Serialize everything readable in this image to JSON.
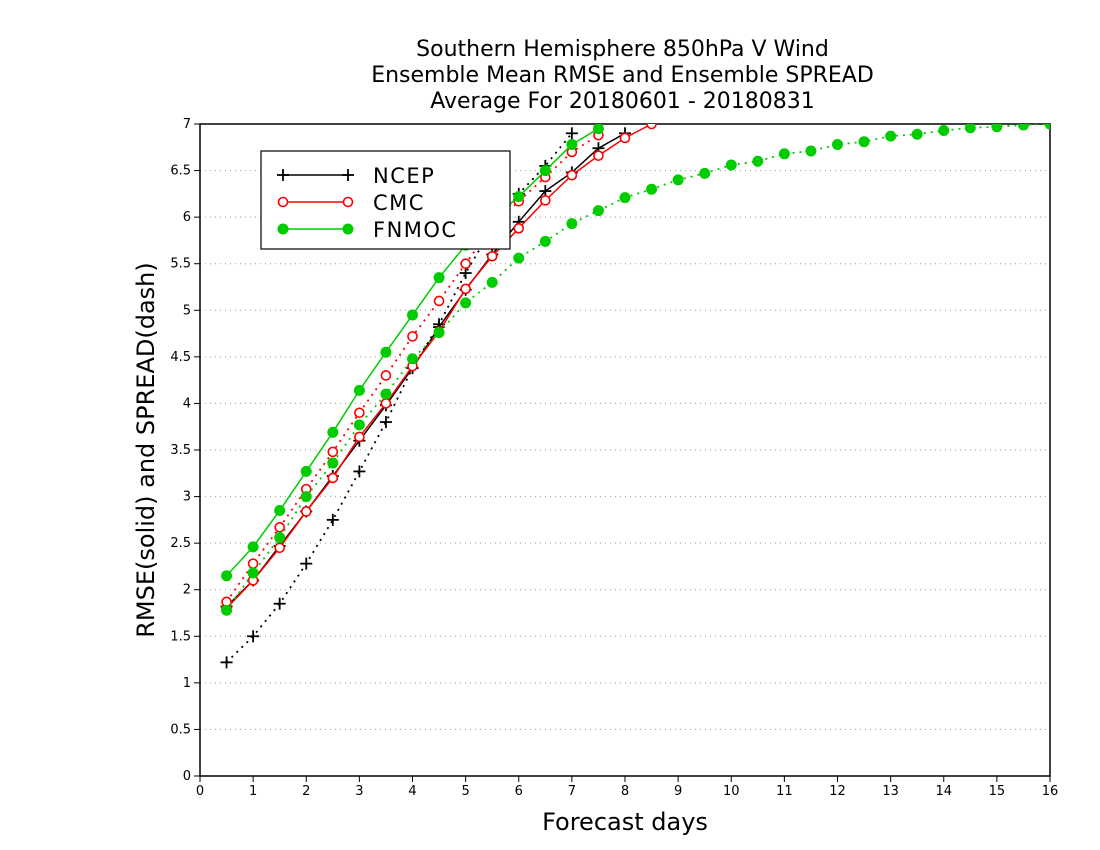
{
  "chart_data": {
    "type": "line",
    "title_lines": [
      "Southern Hemisphere 850hPa V Wind",
      "Ensemble Mean RMSE and Ensemble SPREAD",
      "Average For 20180601 - 20180831"
    ],
    "xlabel": "Forecast days",
    "ylabel": "RMSE(solid) and SPREAD(dash)",
    "xlim": [
      0,
      16
    ],
    "ylim": [
      0,
      7
    ],
    "xticks": [
      0,
      1,
      2,
      3,
      4,
      5,
      6,
      7,
      8,
      9,
      10,
      11,
      12,
      13,
      14,
      15,
      16
    ],
    "yticks": [
      0,
      0.5,
      1,
      1.5,
      2,
      2.5,
      3,
      3.5,
      4,
      4.5,
      5,
      5.5,
      6,
      6.5,
      7
    ],
    "ytick_labels": [
      "0",
      "0.5",
      "1",
      "1.5",
      "2",
      "2.5",
      "3",
      "3.5",
      "4",
      "4.5",
      "5",
      "5.5",
      "6",
      "6.5",
      "7"
    ],
    "grid": "horizontal dotted",
    "legend_position": "top-left",
    "series": [
      {
        "name": "NCEP",
        "color": "#000000",
        "marker": "plus",
        "style": "solid",
        "metric": "RMSE",
        "x": [
          0.5,
          1,
          1.5,
          2,
          2.5,
          3,
          3.5,
          4,
          4.5,
          5,
          5.5,
          6,
          6.5,
          7,
          7.5,
          8
        ],
        "y": [
          1.82,
          2.1,
          2.47,
          2.84,
          3.22,
          3.6,
          3.98,
          4.38,
          4.82,
          5.22,
          5.6,
          5.95,
          6.28,
          6.48,
          6.74,
          6.9
        ]
      },
      {
        "name": "NCEP",
        "color": "#000000",
        "marker": "plus",
        "style": "dotted",
        "metric": "SPREAD",
        "x": [
          0.5,
          1,
          1.5,
          2,
          2.5,
          3,
          3.5,
          4,
          4.5,
          5,
          5.5,
          6,
          6.5,
          7
        ],
        "y": [
          1.22,
          1.5,
          1.85,
          2.28,
          2.75,
          3.27,
          3.8,
          4.38,
          4.85,
          5.4,
          5.88,
          6.25,
          6.55,
          6.9
        ]
      },
      {
        "name": "CMC",
        "color": "#ff0000",
        "marker": "circle",
        "style": "solid",
        "metric": "RMSE",
        "x": [
          0.5,
          1,
          1.5,
          2,
          2.5,
          3,
          3.5,
          4,
          4.5,
          5,
          5.5,
          6,
          6.5,
          7,
          7.5,
          8,
          8.5
        ],
        "y": [
          1.8,
          2.1,
          2.45,
          2.84,
          3.2,
          3.64,
          4.0,
          4.4,
          4.77,
          5.23,
          5.58,
          5.88,
          6.18,
          6.45,
          6.66,
          6.85,
          7.0
        ]
      },
      {
        "name": "CMC",
        "color": "#ff0000",
        "marker": "circle",
        "style": "dotted",
        "metric": "SPREAD",
        "x": [
          0.5,
          1,
          1.5,
          2,
          2.5,
          3,
          3.5,
          4,
          4.5,
          5,
          5.5,
          6,
          6.5,
          7,
          7.5
        ],
        "y": [
          1.87,
          2.28,
          2.67,
          3.08,
          3.48,
          3.9,
          4.3,
          4.72,
          5.1,
          5.5,
          5.9,
          6.17,
          6.43,
          6.7,
          6.88
        ]
      },
      {
        "name": "FNMOC",
        "color": "#00cc00",
        "marker": "dot",
        "style": "solid",
        "metric": "RMSE",
        "x": [
          0.5,
          1,
          1.5,
          2,
          2.5,
          3,
          3.5,
          4,
          4.5,
          5,
          5.5,
          6,
          6.5,
          7,
          7.5
        ],
        "y": [
          2.15,
          2.46,
          2.85,
          3.27,
          3.69,
          4.14,
          4.55,
          4.95,
          5.35,
          5.7,
          5.98,
          6.22,
          6.5,
          6.78,
          6.95
        ]
      },
      {
        "name": "FNMOC",
        "color": "#00cc00",
        "marker": "dot",
        "style": "dotted",
        "metric": "SPREAD",
        "x": [
          0.5,
          1,
          1.5,
          2,
          2.5,
          3,
          3.5,
          4,
          4.5,
          5,
          5.5,
          6,
          6.5,
          7,
          7.5,
          8,
          8.5,
          9,
          9.5,
          10,
          10.5,
          11,
          11.5,
          12,
          12.5,
          13,
          13.5,
          14,
          14.5,
          15,
          15.5,
          16
        ],
        "y": [
          1.78,
          2.18,
          2.56,
          3.0,
          3.36,
          3.77,
          4.1,
          4.48,
          4.76,
          5.08,
          5.3,
          5.56,
          5.74,
          5.93,
          6.07,
          6.21,
          6.3,
          6.4,
          6.47,
          6.56,
          6.6,
          6.68,
          6.71,
          6.78,
          6.81,
          6.87,
          6.89,
          6.93,
          6.96,
          6.97,
          6.99,
          7.0
        ]
      }
    ],
    "legend": [
      {
        "label": "NCEP",
        "color": "#000000",
        "marker": "plus"
      },
      {
        "label": "CMC",
        "color": "#ff0000",
        "marker": "circle"
      },
      {
        "label": "FNMOC",
        "color": "#00cc00",
        "marker": "dot"
      }
    ]
  }
}
